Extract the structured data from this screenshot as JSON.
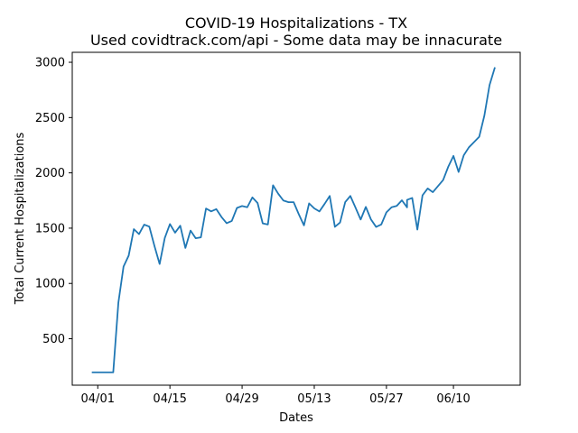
{
  "chart_data": {
    "type": "line",
    "title": "COVID-19 Hospitalizations - TX",
    "subtitle": "Used covidtrack.com/api - Some data may be innacurate",
    "xlabel": "Dates",
    "ylabel": "Total Current Hospitalizations",
    "x_tick_labels": [
      "04/01",
      "04/15",
      "04/29",
      "05/13",
      "05/27",
      "06/10"
    ],
    "y_ticks": [
      500,
      1000,
      1500,
      2000,
      2500,
      3000
    ],
    "ylim": [
      80,
      3090
    ],
    "grid": false,
    "series": [
      {
        "color": "#1f77b4",
        "x": [
          "03/31",
          "04/01",
          "04/02",
          "04/03",
          "04/04",
          "04/05",
          "04/06",
          "04/07",
          "04/08",
          "04/09",
          "04/10",
          "04/11",
          "04/12",
          "04/13",
          "04/14",
          "04/15",
          "04/16",
          "04/17",
          "04/18",
          "04/19",
          "04/20",
          "04/21",
          "04/22",
          "04/23",
          "04/24",
          "04/25",
          "04/26",
          "04/27",
          "04/28",
          "04/29",
          "04/30",
          "05/01",
          "05/02",
          "05/03",
          "05/04",
          "05/05",
          "05/06",
          "05/07",
          "05/08",
          "05/09",
          "05/10",
          "05/11",
          "05/12",
          "05/13",
          "05/14",
          "05/15",
          "05/16",
          "05/17",
          "05/18",
          "05/19",
          "05/20",
          "05/21",
          "05/22",
          "05/23",
          "05/24",
          "05/25",
          "05/26",
          "05/27",
          "05/28",
          "05/29",
          "05/30",
          "05/31",
          "06/01",
          "06/02",
          "06/03",
          "06/04",
          "06/05",
          "06/06",
          "06/07",
          "06/08",
          "06/09",
          "06/10",
          "06/11",
          "06/12",
          "06/13",
          "06/14",
          "06/15",
          "06/16",
          "06/17",
          "06/18"
        ],
        "y": [
          196,
          196,
          196,
          196,
          196,
          826,
          1153,
          1252,
          1491,
          1446,
          1532,
          1514,
          1338,
          1176,
          1411,
          1537,
          1459,
          1522,
          1321,
          1478,
          1409,
          1417,
          1678,
          1652,
          1672,
          1601,
          1545,
          1565,
          1683,
          1700,
          1689,
          1778,
          1728,
          1543,
          1533,
          1888,
          1812,
          1750,
          1735,
          1735,
          1626,
          1525,
          1724,
          1679,
          1651,
          1719,
          1791,
          1512,
          1551,
          1735,
          1791,
          1686,
          1578,
          1692,
          1579,
          1511,
          1533,
          1643,
          1689,
          1701,
          1752,
          1688,
          1756,
          1773,
          1487,
          1797,
          1859,
          1825,
          1880,
          1935,
          2056,
          2153,
          2008,
          2159,
          2231,
          2278,
          2326,
          2518,
          2793,
          2947
        ]
      }
    ]
  }
}
